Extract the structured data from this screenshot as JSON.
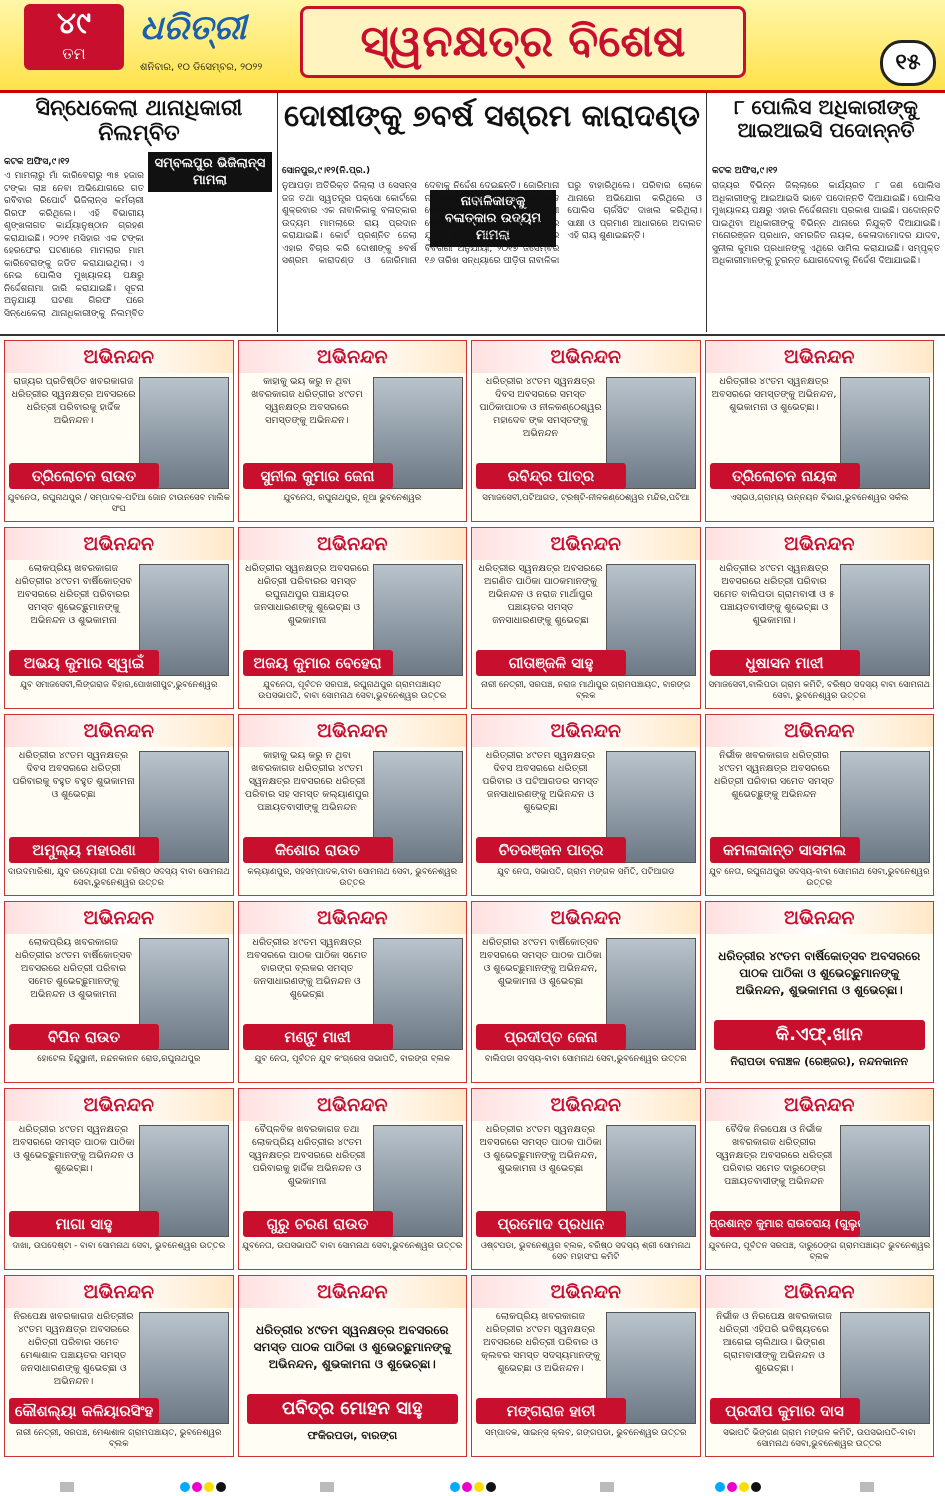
{
  "header": {
    "edition": "୪୯",
    "edition_suffix": "ତମ",
    "brand": "ଧରିତ୍ରୀ",
    "date": "ଶନିବାର, ୧୦ ଡିସେମ୍ବର, ୨୦୨୨",
    "title": "ସ୍ୱନକ୍ଷତ୍ର ବିଶେଷ",
    "page": "୧୫"
  },
  "stories": [
    {
      "headline": "ସିନ୍ଧେକେଲା ଥାନାଧିକାରୀ ନିଲମ୍ବିତ",
      "tag": "ସମ୍ବଲପୁର ଭିଜିଲାନ୍ସ ମାମଲା",
      "dateline": "କଟକ ଅଫିସ,୯।୧୨",
      "body": "ଏ ମାମଲାରୁ ମାଁ କାରିବେରାରୁ ୩୫ ହଜାର ଟଙ୍କା ଲାଞ୍ଚ ନେବା ଅଭିଯୋଗରେ ଗତ ରବିବାର ରିପୋର୍ଟ ଭିଜିଲାନ୍ସ କର୍ମଚାରୀ ଗିରଫ କରିଥିଲେ। ଏହି ବିଭାଗୀୟ ଶୃଙ୍ଖଳାଗତ କାର୍ଯ୍ୟାନୁଷ୍ଠାନ ଗ୍ରହଣ କରାଯାଇଛି। ୨୦୨୧ ମସିହାର ଏକ ଟଙ୍କା ହେରଫେର ଘଟଣାରେ ମାମଲାର ମାମ କାରିବେରାଙ୍କୁ ଜଡିତ କରାଯାଇଥିଲା। ଏ ନେଇ ପୋଲିସ ମୁଖ୍ୟାଳୟ ପକ୍ଷରୁ ନିର୍ଦ୍ଦେଶନାମା ଜାରି କରାଯାଇଛି। ସୂଚନା ଅନୁଯାୟୀ ଘଟଣା ଗିରଫ ପରେ ସିନ୍ଧେକେଲା ଥାନାଧିକାରୀଙ୍କୁ ନିଲମ୍ବିତ କରାଯାଇଛି। ଅଭିଯୁକ୍ତଙ୍କ ବିରୋଧରେ ଭିଜିଲାନ୍ସ ଥାନାରେ ମାମଲା (ନଂ.୪୯/୨୨) ରୁଜୁ ହୋଇଛି।"
    },
    {
      "headline": "ଦୋଷୀଙ୍କୁ ୭ବର୍ଷ ସଶ୍ରମ କାରାଦଣ୍ଡ",
      "tag": "ନାବାଳିକାଙ୍କୁ ବଳାତ୍କାର ଉଦ୍ୟମ ମାମଲା",
      "dateline": "ସୋନପୁର,୯।୧୨(ନି.ପ୍ର.)",
      "body": "ନୁଆପଡ଼ା ଅତିରିକ୍ତ ଜିଲ୍ଲା ଓ ସେସନ୍ସ ଜଜ ତଥା ସ୍ୱତନ୍ତ୍ର ପକ୍ସୋ କୋର୍ଟରେ ଶୁକ୍ରବାର ଏକ ନାବାଳିକାକୁ ବଳାତ୍କାର ଉଦ୍ୟମ ମାମଲାରେ ରାୟ ପ୍ରଦାନ କରାଯାଇଛି। କୋର୍ଟ ପ୍ରଶ୍ନିତ ଜେଲା ଏହାର ବିଚାର କରି ଦୋଷୀଙ୍କୁ ୭ବର୍ଷ ସଶ୍ରମ କାରାଦଣ୍ଡ ଓ ଜୋରିମାନା ଦେବାକୁ ନିର୍ଦ୍ଦେଶ ଦେଇଛନ୍ତି। ଜୋରିମାନା ନ ଦେଲେ ଅଧିକ ୩ ମାସ କାରାଦଣ୍ଡ ଭୋଗିବାକୁ ହେବ। ପ୍ରସଙ୍ଗରେ ଦୋଷୀ ସୋନପୁର ଥାନା ଅଧୀନ ଏକ ଗ୍ରାମର ଯୁବକ ବୋଲି ଜଣାପଡ଼ିଛି। ମାମଲାର ବିବରଣୀ ଅନୁଯାୟୀ, ୨୦୧୭ ଜିସେମ୍ବର ୧୬ ତାରିଖ ସନ୍ଧ୍ୟାରେ ପୀଡ଼ିତା ନାବାଳିକା ଘରୁ ବାହାରିଥିଲେ। ପରିବାର ଲୋକେ ଥାନାରେ ଅଭିଯୋଗ କରିଥିଲେ ଓ ପୋଲିସ ଚାର୍ଜସିଟ ଦାଖଲ କରିଥିଲା। ସାକ୍ଷୀ ଓ ପ୍ରମାଣ ଆଧାରରେ ଅଦାଲତ ଏହି ରାୟ ଶୁଣାଇଛନ୍ତି।"
    },
    {
      "headline": "୮ ପୋଲିସ ଅଧିକାରୀଙ୍କୁ ଆଇଆଇସି ପଦୋନ୍ନତି",
      "tag": "",
      "dateline": "କଟକ ଅଫିସ,୯।୧୨",
      "body": "ରାଜ୍ୟର ବିଭିନ୍ନ ଜିଲ୍ଲାରେ କାର୍ଯ୍ୟରତ ୮ ଜଣ ପୋଲିସ ଅଧିକାରୀଙ୍କୁ ଆଇଆଇସି ଭାବେ ପଦୋନ୍ନତି ଦିଆଯାଇଛି। ପୋଲିସ ମୁଖ୍ୟାଳୟ ପକ୍ଷରୁ ଏହାର ନିର୍ଦ୍ଦେଶନାମା ପ୍ରକାଶ ପାଇଛି। ପଦୋନ୍ନତି ପାଇଥିବା ଅଧିକାରୀଙ୍କୁ ବିଭିନ୍ନ ଥାନାରେ ନିଯୁକ୍ତି ଦିଆଯାଇଛି। ମନୋରଞ୍ଜନ ପ୍ରଧାନ, ସମରଜିତ ନାୟକ, କେଳାଦାମୋଦର ଯାଦବ, ସୁନୀଲ କୁମାର ପ୍ରଧାନଙ୍କୁ ଏଥିରେ ସାମିଲ କରାଯାଇଛି। ସମ୍ପୃକ୍ତ ଅଧିକାରୀମାନଙ୍କୁ ତୁରନ୍ତ ଯୋଗଦେବାକୁ ନିର୍ଦ୍ଦେଶ ଦିଆଯାଇଛି।"
    }
  ],
  "ads": [
    {
      "heading": "ଅଭିନନ୍ଦନ",
      "message": "ରାଜ୍ୟର ପ୍ରତିଷ୍ଠିତ ଖବରକାଗଜ ଧରିତ୍ରୀର ସ୍ୱନକ୍ଷତ୍ର ଅବସରରେ ଧରିତ୍ରୀ ପରିବାରକୁ ହାର୍ଦ୍ଦିକ ଅଭିନନ୍ଦନ।",
      "name": "ତ୍ରିଲୋଚନ ରାଉତ",
      "caption": "ଯୁବନେତା, ରଘୁନାଥପୁର / ସମ୍ପାଦକ-ପଟିଆ ଜୋନ ଟାଉନସେବ ମାଲିକ ସଂଘ"
    },
    {
      "heading": "ଅଭିନନ୍ଦନ",
      "message": "କାହାକୁ ଭୟ କରୁ ନ ଥିବା ଖବରକାଗଜ ଧରିତ୍ରୀର ୪୯ତମ ସ୍ୱନକ୍ଷତ୍ର ଅବସରରେ ସମସ୍ତଙ୍କୁ ଅଭିନନ୍ଦନ।",
      "name": "ସୁନୀଲ କୁମାର ଜେନା",
      "caption": "ଯୁବନେତା, ରଘୁନାଥପୁର, ନୂଆ ଭୁବନେଶ୍ୱର"
    },
    {
      "heading": "ଅଭିନନ୍ଦନ",
      "message": "ଧରିତ୍ରୀର ୪୯ତମ ସ୍ୱନକ୍ଷତ୍ର ଦିବସ ଅବସରରେ ସମସ୍ତ ପାଠିକାପାଠକ ଓ ନୀଳକଣ୍ଠେଶ୍ୱର ମହାଦେବ ଙ୍କ ସମସ୍ତଙ୍କୁ ଅଭିନନ୍ଦନ",
      "name": "ରବିନ୍ଦ୍ର ପାତ୍ର",
      "caption": "ସମାଜସେବୀ,ପଟିଆଗଡ, ଟ୍ରଷ୍ଟି-ନୀଳକଣ୍ଠେଶ୍ୱର ମନ୍ଦିର,ପଟିଆ"
    },
    {
      "heading": "ଅଭିନନ୍ଦନ",
      "message": "ଧରିତ୍ରୀର ୪୯ତମ ସ୍ୱନକ୍ଷତ୍ର ଅବସରରେ ସମସ୍ତଙ୍କୁ ଅଭିନନ୍ଦନ, ଶୁଭକାମନା ଓ ଶୁଭେଚ୍ଛା।",
      "name": "ତ୍ରିଲୋଚନ ନାୟକ",
      "caption": "ଏସ୍ଇଓ,ଗ୍ରାମ୍ୟ ଉନ୍ନୟନ ବିଭାଗ,ଭୁବନେଶ୍ୱର ସର୍କଲ"
    },
    {
      "heading": "ଅଭିନନ୍ଦନ",
      "message": "ଲୋକପ୍ରିୟ ଖବରକାଗଜ ଧରିତ୍ରୀର ୪୯ତମ ବାର୍ଷିକୋତ୍ସବ ଅବସରରେ ଧରିତ୍ରୀ ପରିବାରର ସମସ୍ତ ଶୁଭେଚ୍ଛୁମାନଙ୍କୁ ଅଭିନନ୍ଦନ ଓ ଶୁଭକାମନା",
      "name": "ଅଭୟ କୁମାର ସ୍ୱାଇଁ",
      "caption": "ଯୁବ ସମାଜସେବୀ,ଲିଙ୍ଗରାଜ ବିହାର,ପୋଖରୀପୁଟ,ଭୁବନେଶ୍ୱର"
    },
    {
      "heading": "ଅଭିନନ୍ଦନ",
      "message": "ଧରିତ୍ରୀର ସ୍ୱନକ୍ଷତ୍ର ଅବସରରେ ଧରିତ୍ରୀ ପରିବାରର ସମସ୍ତ ରଘୁନାଥପୁର ପଞ୍ଚାୟତର ଜନସାଧାରଣଙ୍କୁ ଶୁଭେଚ୍ଛା ଓ ଶୁଭକାମନା",
      "name": "ଅଜୟ କୁମାର ବେହେରା",
      "caption": "ଯୁବନେତା, ପୂର୍ବତନ ସରପଞ୍ଚ, ରଘୁନାଥପୁର ଗ୍ରାମପଞ୍ଚାୟତ ଉପସଭାପତି, ବାବା ସୋମନାଥ ସେବା,ଭୁବନେଶ୍ୱର ଉତ୍ତର"
    },
    {
      "heading": "ଅଭିନନ୍ଦନ",
      "message": "ଧରିତ୍ରୀର ସ୍ୱନକ୍ଷତ୍ର ଅବସରରେ ଅଗଣିତ ପାଠିକା ପାଠକମାନଙ୍କୁ ଅଭିନନ୍ଦନ ଓ ନରାଜ ମାର୍ଥାପୁର ପଞ୍ଚାୟତର ସମସ୍ତ ଜନସାଧାରଣଙ୍କୁ ଶୁଭେଚ୍ଛା",
      "name": "ଗୀତାଞ୍ଜଳି ସାହୁ",
      "caption": "ନାରୀ ନେତ୍ରୀ, ସରପଞ୍ଚ, ନରାଜ ମାର୍ଥାପୁର ଗ୍ରାମପଞ୍ଚାୟତ, ବାରଙ୍ଗ ବ୍ଲକ"
    },
    {
      "heading": "ଅଭିନନ୍ଦନ",
      "message": "ଧରିତ୍ରୀର ୪୯ତମ ସ୍ୱନକ୍ଷତ୍ର ଅବସରରେ ଧରିତ୍ରୀ ପରିବାର ସମେତ ବାଲିପଡା ଗ୍ରାମବାସୀ ଓ ୫ ପଞ୍ଚାୟତବାସୀଙ୍କୁ ଶୁଭେଚ୍ଛା ଓ ଶୁଭକାମନା।",
      "name": "ଧୁଷାସନ ମାଝୀ",
      "caption": "ସମାଜସେବୀ,ବାଲିପଡା ଗ୍ରାମ କମିଟି, ବରିଷ୍ଠ ସଦସ୍ୟ ବାବା ସୋମନାଥ ସେବା, ଭୁବନେଶ୍ୱର ଉତ୍ତର"
    },
    {
      "heading": "ଅଭିନନ୍ଦନ",
      "message": "ଧରିତ୍ରୀର ୪୯ତମ ସ୍ୱନକ୍ଷତ୍ର ଦିବସ ଅବସରରେ ଧରିତ୍ରୀ ପରିବାରକୁ ବହୁତ ବହୁତ ଶୁଭକାମନା ଓ ଶୁଭେଚ୍ଛା",
      "name": "ଅମୁଲ୍ୟ ମହାରଣା",
      "caption": "ଦାଉଦମାରିଶା, ଯୁବ ଉଦ୍ୟୋଗୀ ତଥା ବରିଷ୍ଠ ସଦସ୍ୟ ବାବା ସୋମନାଥ ସେବା,ଭୁବନେଶ୍ୱର ଉତ୍ତର"
    },
    {
      "heading": "ଅଭିନନ୍ଦନ",
      "message": "କାହାକୁ ଭୟ କରୁ ନ ଥିବା ଖବରକାଗଜ ଧରିତ୍ରୀର ୪୯ତମ ସ୍ୱନକ୍ଷତ୍ର ଅବସରରେ ଧରିତ୍ରୀ ପରିବାର ସହ ସମସ୍ତ କଲ୍ୟାଣପୁର ପଞ୍ଚାୟତବାସୀଙ୍କୁ ଅଭିନନ୍ଦନ",
      "name": "କିଶୋର ରାଉତ",
      "caption": "କଲ୍ୟାଣପୁର, ସହସମ୍ପାଦକ,ବାବା ସୋମନାଥ ସେବା, ଭୁବନେଶ୍ୱର ଉତ୍ତର"
    },
    {
      "heading": "ଅଭିନନ୍ଦନ",
      "message": "ଧରିତ୍ରୀର ୪୯ତମ ସ୍ୱନକ୍ଷତ୍ର ଦିବସ ଅବସରରେ ଧରିତ୍ରୀ ପରିବାର ଓ ପଟିଆଗଡର ସମସ୍ତ ଜନସାଧାରଣଙ୍କୁ ଅଭିନନ୍ଦନ ଓ ଶୁଭେଚ୍ଛା",
      "name": "ଚିତରଞ୍ଜନ ପାତ୍ର",
      "caption": "ଯୁବ ନେତା, ସଭାପତି, ଗ୍ରାମ ମଙ୍ଗଳ ସମିତି, ପଟିଆଗଡ"
    },
    {
      "heading": "ଅଭିନନ୍ଦନ",
      "message": "ନିର୍ଭୀକ ଖବରକାଗଜ ଧରିତ୍ରୀର ୪୯ତମ ସ୍ୱନକ୍ଷତ୍ର ଅବସରରେ ଧରିତ୍ରୀ ପରିବାର ସମେତ ସମସ୍ତ ଶୁଭେଚ୍ଛୁଙ୍କୁ ଅଭିନନ୍ଦନ",
      "name": "କମଳାକାନ୍ତ ସାସମଲ",
      "caption": "ଯୁବ ନେତା, ରଘୁନାଥପୁର ସଦସ୍ୟ-ବାବା ସୋମନାଥ ସେବା,ଭୁବନେଶ୍ୱର ଉତ୍ତର"
    },
    {
      "heading": "ଅଭିନନ୍ଦନ",
      "message": "ଲୋକପ୍ରିୟ ଖବରକାଗଜ ଧରିତ୍ରୀର ୪୯ତମ ବାର୍ଷିକୋତ୍ସବ ଅବସରରେ ଧରିତ୍ରୀ ପରିବାର ସମେତ ଶୁଭେଚ୍ଛୁମାନଙ୍କୁ ଅଭିନନ୍ଦନ ଓ ଶୁଭକାମନା",
      "name": "ବିପିନ ରାଉତ",
      "caption": "ହୋଟେଲ ହିନ୍ଦୁସ୍ଥାନୀ, ନନ୍ଦନକାନନ ରୋଡ,ରଘୁନାଥପୁର"
    },
    {
      "heading": "ଅଭିନନ୍ଦନ",
      "message": "ଧରିତ୍ରୀର ୪୯ତମ ସ୍ୱନକ୍ଷତ୍ର ଅବସରରେ ପାଠକ ପାଠିକା ସମେତ ବାରଙ୍ଗ ବ୍ଲକର ସମସ୍ତ ଜନସାଧାରଣଙ୍କୁ ଅଭିନନ୍ଦନ ଓ ଶୁଭେଚ୍ଛା",
      "name": "ମଣ୍ଟୁ ମାଝୀ",
      "caption": "ଯୁବ ନେତା, ପୂର୍ବତନ ଯୁବ କଂଗ୍ରେସ ସଭାପତି, ବାରଙ୍ଗ ବ୍ଲକ"
    },
    {
      "heading": "ଅଭିନନ୍ଦନ",
      "message": "ଧରିତ୍ରୀର ୪୯ତମ ବାର୍ଷିକୋତ୍ସବ ଅବସରରେ ସମସ୍ତ ପାଠକ ପାଠିକା ଓ ଶୁଭେଚ୍ଛୁମାନଙ୍କୁ ଅଭିନନ୍ଦନ, ଶୁଭକାମନା ଓ ଶୁଭେଚ୍ଛା",
      "name": "ପ୍ରଦୀପ୍ତ ଜେନା",
      "caption": "ବାଲିପଡା ସଦସ୍ୟ-ବାବା ସୋମନାଥ ସେବା,ଭୁବନେଶ୍ୱର ଉତ୍ତର"
    },
    {
      "heading": "ଅଭିନନ୍ଦନ",
      "message": "ଧରିତ୍ରୀର ୪୯ତମ ବାର୍ଷିକୋତ୍ସବ ଅବସରରେ ପାଠକ ପାଠିକା ଓ ଶୁଭେଚ୍ଛୁମାନଙ୍କୁ ଅଭିନନ୍ଦନ, ଶୁଭକାମନା ଓ ଶୁଭେଚ୍ଛା।",
      "name": "କି.ଏଫ୍.ଖାନ",
      "caption": "ନିରାପଡା ବନାଞ୍ଚଳ (ରେଞ୍ଜର), ନନ୍ଦନକାନନ"
    },
    {
      "heading": "ଅଭିନନ୍ଦନ",
      "message": "ଧରିତ୍ରୀର ୪୯ତମ ସ୍ୱନକ୍ଷତ୍ର ଅବସରରେ ସମସ୍ତ ପାଠକ ପାଠିକା ଓ ଶୁଭେଚ୍ଛୁମାନଙ୍କୁ ଅଭିନନ୍ଦନ ଓ ଶୁଭେଚ୍ଛା।",
      "name": "ମାଗା ସାହୁ",
      "caption": "ଦାଖା, ଉପଦେଷ୍ଟା - ବାବା ସୋମନାଥ ସେବା, ଭୁବନେଶ୍ୱର ଉତ୍ତର"
    },
    {
      "heading": "ଅଭିନନ୍ଦନ",
      "message": "ବୈପ୍ଳବିକ ଖବରକାଗଜ ତଥା ଲୋକପ୍ରିୟ ଧରିତ୍ରୀର ୪୯ତମ ସ୍ୱନକ୍ଷତ୍ର ଅବସରରେ ଧରିତ୍ରୀ ପରିବାରକୁ ହାର୍ଦ୍ଦିକ ଅଭିନନ୍ଦନ ଓ ଶୁଭକାମନା",
      "name": "ଗୁରୁ ଚରଣ ରାଉତ",
      "caption": "ଯୁବନେତା, ଉପସଭାପତି ବାବା ସୋମନାଥ ସେବା,ଭୁବନେଶ୍ୱର ଉତ୍ତର"
    },
    {
      "heading": "ଅଭିନନ୍ଦନ",
      "message": "ଧରିତ୍ରୀର ୪୯ତମ ସ୍ୱନକ୍ଷତ୍ର ଅବସରରେ ସମସ୍ତ ପାଠକ ପାଠିକା ଓ ଶୁଭେଚ୍ଛୁମାନଙ୍କୁ ଅଭିନନ୍ଦନ, ଶୁଭକାମନା ଓ ଶୁଭେଚ୍ଛା",
      "name": "ପ୍ରମୋଦ ପ୍ରଧାନ",
      "caption": "ଓଷ୍ଟପଡା, ଭୁବନେଶ୍ୱର ବ୍ଲକ, ବରିଷ୍ଠ ସଦସ୍ୟ ଶ୍ରୀ ସୋମନାଥ ସେବ ମହାସଂଘ କମିଟି"
    },
    {
      "heading": "ଅଭିନନ୍ଦନ",
      "message": "ବୈଦିକ ନିରପେକ୍ଷ ଓ ନିର୍ଭୀକ ଖବରକାଗଜ ଧରିତ୍ରୀର ସ୍ୱନକ୍ଷତ୍ର ଅବସରରେ ଧରିତ୍ରୀ ପରିବାର ସମେତ ଦାରୁଠେଙ୍ଗ ପଞ୍ଚାୟତବାସୀଙ୍କୁ ଅଭିନନ୍ଦନ",
      "name": "ପ୍ରଶାନ୍ତ କୁମାର ରାଉତରାୟ (ଗୁଲୁରାଜ)",
      "caption": "ଯୁବନେତା, ପୂର୍ବତନ ସରପଞ୍ଚ, ଦାରୁଠେଙ୍ଗ ଗ୍ରାମପଞ୍ଚାୟତ ଭୁବନେଶ୍ୱର ବ୍ଲକ"
    },
    {
      "heading": "ଅଭିନନ୍ଦନ",
      "message": "ନିରପେକ୍ଷ ଖବରକାଗଜ ଧରିତ୍ରୀର ୪୯ତମ ସ୍ୱନକ୍ଷତ୍ର ଅବସରରେ ଧରିତ୍ରୀ ପରିବାର ସମେତ ମେଣ୍ଢାଶାଳ ପଞ୍ଚାୟତର ସମସ୍ତ ଜନସାଧାରଣଙ୍କୁ ଶୁଭେଚ୍ଛା ଓ ଅଭିନନ୍ଦନ।",
      "name": "କୌଶଲ୍ୟା କଳିୟାରସିଂହ",
      "caption": "ନାରୀ ନେତ୍ରୀ, ସରପଞ୍ଚ, ମେଣ୍ଢାଶାଳ ଗ୍ରାମପଞ୍ଚାୟତ, ଭୁବନେଶ୍ୱର ବ୍ଲକ"
    },
    {
      "heading": "ଅଭିନନ୍ଦନ",
      "message": "ଧରିତ୍ରୀର ୪୯ତମ ସ୍ୱନକ୍ଷତ୍ର ଅବସରରେ ସମସ୍ତ ପାଠକ ପାଠିକା ଓ ଶୁଭେଚ୍ଛୁମାନଙ୍କୁ ଅଭିନନ୍ଦନ, ଶୁଭକାମନା ଓ ଶୁଭେଚ୍ଛା।",
      "name": "ପବିତ୍ର ମୋହନ ସାହୁ",
      "caption": "ଫକିରପଡା, ବାରଙ୍ଗ"
    },
    {
      "heading": "ଅଭିନନ୍ଦନ",
      "message": "ଲୋକପ୍ରିୟ ଖବରକାଗଜ ଧରିତ୍ରୀର ୪୯ତମ ସ୍ୱନକ୍ଷତ୍ର ଅବସରରେ ଧରିତ୍ରୀ ପରିବାର ଓ କ୍ଲବର ସମସ୍ତ ସଦସ୍ୟମାନଙ୍କୁ ଶୁଭେଚ୍ଛା ଓ ଅଭିନନ୍ଦନ।",
      "name": "ମଙ୍ଗରାଜ ହାତୀ",
      "caption": "ସମ୍ପାଦକ, ସାଇନ୍ସ କ୍ଲବ, ଗଙ୍ଗପଡା, ଭୁବନେଶ୍ୱର ଉତ୍ତର"
    },
    {
      "heading": "ଅଭିନନ୍ଦନ",
      "message": "ନିର୍ଭୀକ ଓ ନିରପେକ୍ଷ ଖବରକାଗଜ ଧରିତ୍ରୀ ଏହିପରି ଭବିଷ୍ୟତରେ ଆଗେଇ ଚାଲିଥାଉ। ଭିଙ୍ଗଣ ଗ୍ରାମବାସୀଙ୍କୁ ଅଭିନନ୍ଦନ ଓ ଶୁଭେଚ୍ଛା।",
      "name": "ପ୍ରଦୀପ କୁମାର ଦାସ",
      "caption": "ସଭାପତି ଭିଙ୍ଗଣ ଗ୍ରାମ ମଙ୍ଗଳ କମିଟି, ଉପସଭାପତି-ବାବା ସୋମନାଥ ସେବା,ଭୁବନେଶ୍ୱର ଉତ୍ତର"
    }
  ]
}
